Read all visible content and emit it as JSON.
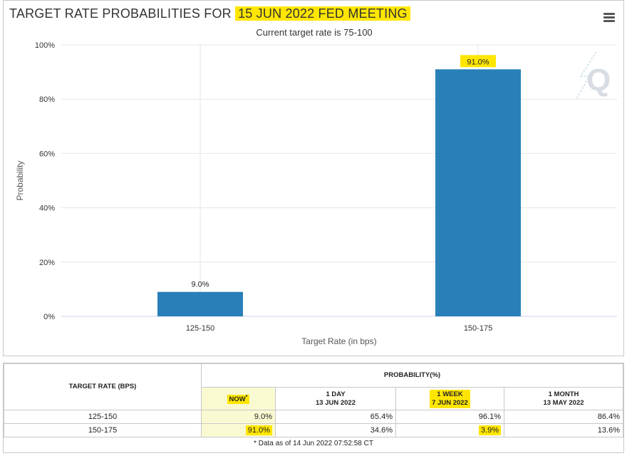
{
  "header": {
    "title_prefix": "TARGET RATE PROBABILITIES FOR ",
    "title_highlight": "15 JUN 2022 FED MEETING",
    "subtitle": "Current target rate is 75-100",
    "menu_icon": "hamburger-menu-icon",
    "watermark_icon": "quikstrike-logo-icon"
  },
  "colors": {
    "bar": "#2980b9",
    "highlight": "#ffe600",
    "grid": "#e6e6e6"
  },
  "chart_data": {
    "type": "bar",
    "categories": [
      "125-150",
      "150-175"
    ],
    "values": [
      9.0,
      91.0
    ],
    "data_labels": [
      "9.0%",
      "91.0%"
    ],
    "highlighted_labels": [
      false,
      true
    ],
    "ylim": [
      0,
      100
    ],
    "yticks": [
      "0%",
      "20%",
      "40%",
      "60%",
      "80%",
      "100%"
    ],
    "xlabel": "Target Rate (in bps)",
    "ylabel": "Probability",
    "grid": true
  },
  "table": {
    "col_target": "TARGET RATE (BPS)",
    "col_probability": "PROBABILITY(%)",
    "periods": [
      {
        "label": "NOW",
        "sup": "*",
        "date": ""
      },
      {
        "label": "1 DAY",
        "date": "13 JUN 2022"
      },
      {
        "label": "1 WEEK",
        "date": "7 JUN 2022"
      },
      {
        "label": "1 MONTH",
        "date": "13 MAY 2022"
      }
    ],
    "rows": [
      {
        "rate": "125-150",
        "values": [
          "9.0%",
          "65.4%",
          "96.1%",
          "86.4%"
        ]
      },
      {
        "rate": "150-175",
        "values": [
          "91.0%",
          "34.6%",
          "3.9%",
          "13.6%"
        ]
      }
    ],
    "footnote": "* Data as of 14 Jun 2022 07:52:58 CT"
  }
}
